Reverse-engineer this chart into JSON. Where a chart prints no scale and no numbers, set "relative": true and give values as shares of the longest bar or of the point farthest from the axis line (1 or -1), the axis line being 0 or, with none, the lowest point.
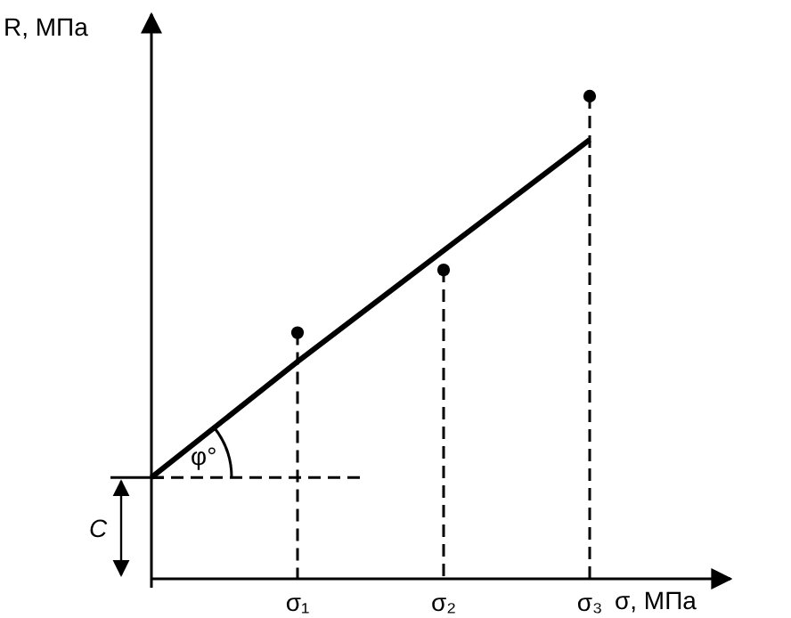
{
  "chart_data": {
    "type": "lollipop",
    "relative": true,
    "xlabel": "σ, МПа",
    "ylabel": "R, МПа",
    "categories": [
      null,
      "σ₁",
      "σ₂",
      "σ₃"
    ],
    "annotations": [
      "φ°",
      "C"
    ],
    "series": [
      {
        "color": "#000000",
        "marker": "circle",
        "line_style": "dashed",
        "x": [
          "σ₁",
          "σ₂",
          "σ₃"
        ],
        "values": [
          0.51,
          0.64,
          1
        ]
      },
      {
        "type": "line",
        "color": "#000000",
        "line_style": "solid",
        "values": [
          0.21,
          0.45,
          0.68,
          0.91
        ]
      }
    ]
  }
}
